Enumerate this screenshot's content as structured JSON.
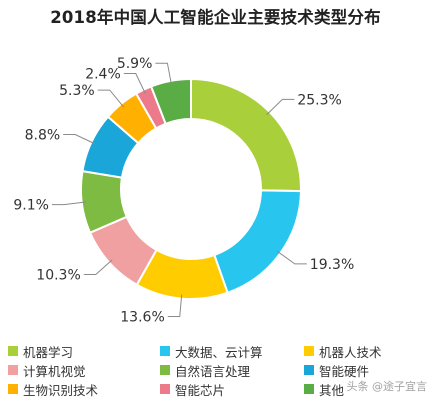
{
  "chart_data": {
    "type": "pie",
    "title": "2018年中国人工智能企业主要技术类型分布",
    "unit": "%",
    "donut": true,
    "start_angle_deg": 0,
    "direction": "clockwise",
    "legend_position": "bottom",
    "slices": [
      {
        "name": "机器学习",
        "value": 25.3,
        "label": "25.3%",
        "color": "#a9cf3a"
      },
      {
        "name": "大数据、云计算",
        "value": 19.3,
        "label": "19.3%",
        "color": "#28c6ee"
      },
      {
        "name": "机器人技术",
        "value": 13.6,
        "label": "13.6%",
        "color": "#ffcc00"
      },
      {
        "name": "计算机视觉",
        "value": 10.3,
        "label": "10.3%",
        "color": "#f0a0a0"
      },
      {
        "name": "自然语言处理",
        "value": 9.1,
        "label": "9.1%",
        "color": "#7dbb42"
      },
      {
        "name": "智能硬件",
        "value": 8.8,
        "label": "8.8%",
        "color": "#1aa6d9"
      },
      {
        "name": "生物识别技术",
        "value": 5.3,
        "label": "5.3%",
        "color": "#ffb000"
      },
      {
        "name": "智能芯片",
        "value": 2.4,
        "label": "2.4%",
        "color": "#ec7a8a"
      },
      {
        "name": "其他",
        "value": 5.9,
        "label": "5.9%",
        "color": "#5aac44"
      }
    ],
    "legend_order": [
      "机器学习",
      "大数据、云计算",
      "机器人技术",
      "计算机视觉",
      "自然语言处理",
      "智能硬件",
      "生物识别技术",
      "智能芯片",
      "其他"
    ]
  },
  "watermark": "头条 @途子宜言"
}
